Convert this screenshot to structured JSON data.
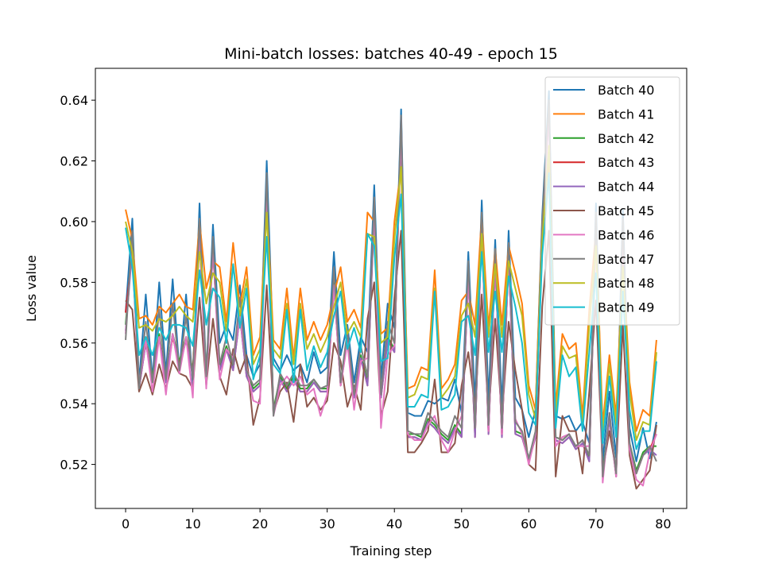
{
  "chart_data": {
    "type": "line",
    "title": "Mini-batch losses: batches 40-49 - epoch 15",
    "xlabel": "Training step",
    "ylabel": "Loss value",
    "xlim": [
      -4.5,
      83.5
    ],
    "ylim": [
      0.5055,
      0.6505
    ],
    "xticks": [
      0,
      10,
      20,
      30,
      40,
      50,
      60,
      70,
      80
    ],
    "yticks": [
      0.52,
      0.54,
      0.56,
      0.58,
      0.6,
      0.62,
      0.64
    ],
    "ytick_labels": [
      "0.52",
      "0.54",
      "0.56",
      "0.58",
      "0.60",
      "0.62",
      "0.64"
    ],
    "grid": false,
    "legend": "top-right",
    "x": [
      0,
      1,
      2,
      3,
      4,
      5,
      6,
      7,
      8,
      9,
      10,
      11,
      12,
      13,
      14,
      15,
      16,
      17,
      18,
      19,
      20,
      21,
      22,
      23,
      24,
      25,
      26,
      27,
      28,
      29,
      30,
      31,
      32,
      33,
      34,
      35,
      36,
      37,
      38,
      39,
      40,
      41,
      42,
      43,
      44,
      45,
      46,
      47,
      48,
      49,
      50,
      51,
      52,
      53,
      54,
      55,
      56,
      57,
      58,
      59,
      60,
      61,
      62,
      63,
      64,
      65,
      66,
      67,
      68,
      69,
      70,
      71,
      72,
      73,
      74,
      75,
      76,
      77,
      78,
      79
    ],
    "series": [
      {
        "name": "Batch 40",
        "color": "#1f77b4",
        "values": [
          0.57,
          0.601,
          0.547,
          0.576,
          0.548,
          0.58,
          0.55,
          0.581,
          0.551,
          0.576,
          0.546,
          0.606,
          0.549,
          0.599,
          0.56,
          0.566,
          0.561,
          0.579,
          0.556,
          0.549,
          0.553,
          0.62,
          0.555,
          0.551,
          0.556,
          0.551,
          0.553,
          0.547,
          0.557,
          0.55,
          0.552,
          0.59,
          0.556,
          0.566,
          0.547,
          0.562,
          0.557,
          0.612,
          0.548,
          0.573,
          0.565,
          0.637,
          0.537,
          0.536,
          0.536,
          0.541,
          0.54,
          0.542,
          0.541,
          0.548,
          0.537,
          0.59,
          0.54,
          0.607,
          0.541,
          0.594,
          0.539,
          0.597,
          0.542,
          0.538,
          0.529,
          0.538,
          0.602,
          0.643,
          0.536,
          0.535,
          0.536,
          0.531,
          0.534,
          0.527,
          0.606,
          0.521,
          0.544,
          0.522,
          0.604,
          0.532,
          0.521,
          0.532,
          0.522,
          0.534
        ]
      },
      {
        "name": "Batch 41",
        "color": "#ff7f0e",
        "values": [
          0.604,
          0.594,
          0.568,
          0.569,
          0.566,
          0.572,
          0.57,
          0.573,
          0.576,
          0.572,
          0.571,
          0.6,
          0.578,
          0.587,
          0.585,
          0.567,
          0.593,
          0.572,
          0.585,
          0.556,
          0.562,
          0.607,
          0.561,
          0.558,
          0.578,
          0.555,
          0.578,
          0.561,
          0.567,
          0.561,
          0.566,
          0.576,
          0.585,
          0.567,
          0.571,
          0.565,
          0.603,
          0.6,
          0.563,
          0.565,
          0.6,
          0.618,
          0.545,
          0.546,
          0.552,
          0.551,
          0.584,
          0.545,
          0.548,
          0.553,
          0.574,
          0.577,
          0.566,
          0.602,
          0.565,
          0.591,
          0.566,
          0.592,
          0.583,
          0.573,
          0.546,
          0.538,
          0.6,
          0.62,
          0.539,
          0.563,
          0.558,
          0.56,
          0.536,
          0.571,
          0.597,
          0.533,
          0.556,
          0.536,
          0.589,
          0.547,
          0.531,
          0.538,
          0.536,
          0.561
        ]
      },
      {
        "name": "Batch 42",
        "color": "#2ca02c",
        "values": [
          0.566,
          0.593,
          0.546,
          0.561,
          0.549,
          0.563,
          0.548,
          0.563,
          0.554,
          0.562,
          0.551,
          0.596,
          0.549,
          0.592,
          0.552,
          0.559,
          0.552,
          0.57,
          0.55,
          0.545,
          0.547,
          0.612,
          0.538,
          0.549,
          0.545,
          0.549,
          0.545,
          0.545,
          0.548,
          0.545,
          0.545,
          0.58,
          0.547,
          0.562,
          0.543,
          0.556,
          0.547,
          0.605,
          0.543,
          0.562,
          0.558,
          0.632,
          0.53,
          0.53,
          0.529,
          0.535,
          0.533,
          0.53,
          0.528,
          0.533,
          0.53,
          0.583,
          0.53,
          0.6,
          0.531,
          0.588,
          0.53,
          0.59,
          0.531,
          0.53,
          0.522,
          0.53,
          0.597,
          0.638,
          0.529,
          0.528,
          0.53,
          0.526,
          0.528,
          0.522,
          0.6,
          0.517,
          0.536,
          0.517,
          0.598,
          0.527,
          0.518,
          0.524,
          0.526,
          0.526
        ]
      },
      {
        "name": "Batch 43",
        "color": "#d62728",
        "values": [
          0.57,
          0.59,
          0.545,
          0.56,
          0.548,
          0.562,
          0.547,
          0.562,
          0.553,
          0.561,
          0.55,
          0.595,
          0.548,
          0.591,
          0.551,
          0.558,
          0.551,
          0.569,
          0.549,
          0.544,
          0.546,
          0.611,
          0.537,
          0.548,
          0.544,
          0.548,
          0.544,
          0.544,
          0.547,
          0.544,
          0.544,
          0.579,
          0.546,
          0.561,
          0.542,
          0.555,
          0.546,
          0.604,
          0.542,
          0.561,
          0.557,
          0.631,
          0.529,
          0.529,
          0.528,
          0.534,
          0.532,
          0.529,
          0.527,
          0.532,
          0.529,
          0.582,
          0.529,
          0.599,
          0.53,
          0.587,
          0.529,
          0.589,
          0.53,
          0.529,
          0.521,
          0.529,
          0.596,
          0.637,
          0.528,
          0.527,
          0.529,
          0.525,
          0.527,
          0.521,
          0.599,
          0.516,
          0.535,
          0.516,
          0.597,
          0.526,
          0.517,
          0.523,
          0.525,
          0.53
        ]
      },
      {
        "name": "Batch 44",
        "color": "#9467bd",
        "values": [
          0.564,
          0.591,
          0.545,
          0.56,
          0.547,
          0.562,
          0.547,
          0.563,
          0.552,
          0.561,
          0.549,
          0.595,
          0.548,
          0.591,
          0.551,
          0.558,
          0.551,
          0.569,
          0.549,
          0.544,
          0.546,
          0.611,
          0.537,
          0.548,
          0.544,
          0.548,
          0.544,
          0.544,
          0.547,
          0.544,
          0.544,
          0.579,
          0.546,
          0.561,
          0.542,
          0.555,
          0.546,
          0.604,
          0.542,
          0.561,
          0.557,
          0.634,
          0.529,
          0.529,
          0.528,
          0.534,
          0.532,
          0.529,
          0.527,
          0.532,
          0.529,
          0.582,
          0.529,
          0.599,
          0.53,
          0.587,
          0.529,
          0.589,
          0.53,
          0.529,
          0.521,
          0.529,
          0.596,
          0.637,
          0.528,
          0.527,
          0.529,
          0.525,
          0.527,
          0.521,
          0.599,
          0.516,
          0.535,
          0.516,
          0.597,
          0.526,
          0.517,
          0.523,
          0.525,
          0.523
        ]
      },
      {
        "name": "Batch 45",
        "color": "#8c564b",
        "values": [
          0.574,
          0.571,
          0.544,
          0.55,
          0.543,
          0.553,
          0.545,
          0.554,
          0.55,
          0.549,
          0.545,
          0.575,
          0.546,
          0.568,
          0.549,
          0.543,
          0.558,
          0.55,
          0.556,
          0.533,
          0.542,
          0.579,
          0.537,
          0.544,
          0.547,
          0.534,
          0.553,
          0.539,
          0.542,
          0.538,
          0.541,
          0.56,
          0.554,
          0.539,
          0.546,
          0.538,
          0.568,
          0.58,
          0.536,
          0.544,
          0.575,
          0.597,
          0.524,
          0.524,
          0.527,
          0.531,
          0.548,
          0.524,
          0.524,
          0.527,
          0.546,
          0.557,
          0.539,
          0.576,
          0.536,
          0.568,
          0.535,
          0.567,
          0.551,
          0.538,
          0.52,
          0.518,
          0.572,
          0.597,
          0.516,
          0.536,
          0.531,
          0.531,
          0.517,
          0.544,
          0.574,
          0.518,
          0.531,
          0.518,
          0.566,
          0.523,
          0.512,
          0.515,
          0.518,
          0.533
        ]
      },
      {
        "name": "Batch 46",
        "color": "#e377c2",
        "values": [
          0.563,
          0.594,
          0.546,
          0.561,
          0.544,
          0.562,
          0.543,
          0.563,
          0.55,
          0.562,
          0.542,
          0.596,
          0.545,
          0.592,
          0.548,
          0.558,
          0.555,
          0.569,
          0.552,
          0.541,
          0.54,
          0.61,
          0.536,
          0.546,
          0.549,
          0.546,
          0.549,
          0.543,
          0.545,
          0.536,
          0.543,
          0.579,
          0.546,
          0.56,
          0.538,
          0.554,
          0.555,
          0.603,
          0.532,
          0.556,
          0.559,
          0.63,
          0.53,
          0.528,
          0.528,
          0.533,
          0.536,
          0.528,
          0.524,
          0.531,
          0.536,
          0.581,
          0.532,
          0.598,
          0.531,
          0.586,
          0.53,
          0.588,
          0.535,
          0.53,
          0.52,
          0.53,
          0.595,
          0.636,
          0.526,
          0.529,
          0.53,
          0.526,
          0.526,
          0.526,
          0.598,
          0.514,
          0.537,
          0.516,
          0.596,
          0.525,
          0.515,
          0.513,
          0.524,
          0.53
        ]
      },
      {
        "name": "Batch 47",
        "color": "#7f7f7f",
        "values": [
          0.561,
          0.597,
          0.545,
          0.567,
          0.547,
          0.571,
          0.548,
          0.573,
          0.551,
          0.569,
          0.548,
          0.601,
          0.549,
          0.595,
          0.553,
          0.562,
          0.553,
          0.575,
          0.551,
          0.546,
          0.548,
          0.616,
          0.536,
          0.55,
          0.546,
          0.55,
          0.546,
          0.546,
          0.548,
          0.545,
          0.546,
          0.585,
          0.547,
          0.564,
          0.543,
          0.559,
          0.549,
          0.608,
          0.543,
          0.567,
          0.56,
          0.635,
          0.531,
          0.53,
          0.53,
          0.537,
          0.534,
          0.531,
          0.529,
          0.536,
          0.532,
          0.587,
          0.532,
          0.603,
          0.533,
          0.591,
          0.532,
          0.593,
          0.534,
          0.531,
          0.522,
          0.531,
          0.6,
          0.64,
          0.529,
          0.528,
          0.53,
          0.526,
          0.528,
          0.523,
          0.603,
          0.516,
          0.537,
          0.517,
          0.601,
          0.527,
          0.517,
          0.523,
          0.526,
          0.521
        ]
      },
      {
        "name": "Batch 48",
        "color": "#bcbd22",
        "values": [
          0.6,
          0.59,
          0.565,
          0.566,
          0.564,
          0.568,
          0.567,
          0.569,
          0.572,
          0.569,
          0.567,
          0.59,
          0.573,
          0.583,
          0.58,
          0.564,
          0.586,
          0.569,
          0.581,
          0.553,
          0.558,
          0.603,
          0.558,
          0.555,
          0.573,
          0.553,
          0.573,
          0.558,
          0.563,
          0.557,
          0.562,
          0.572,
          0.58,
          0.563,
          0.567,
          0.562,
          0.596,
          0.595,
          0.56,
          0.562,
          0.594,
          0.618,
          0.542,
          0.543,
          0.549,
          0.548,
          0.578,
          0.542,
          0.545,
          0.549,
          0.569,
          0.573,
          0.562,
          0.596,
          0.562,
          0.586,
          0.562,
          0.587,
          0.578,
          0.569,
          0.543,
          0.535,
          0.594,
          0.625,
          0.536,
          0.559,
          0.555,
          0.556,
          0.533,
          0.566,
          0.592,
          0.53,
          0.553,
          0.533,
          0.585,
          0.544,
          0.528,
          0.534,
          0.533,
          0.557
        ]
      },
      {
        "name": "Batch 49",
        "color": "#17becf",
        "values": [
          0.598,
          0.585,
          0.556,
          0.562,
          0.556,
          0.565,
          0.561,
          0.566,
          0.566,
          0.565,
          0.559,
          0.584,
          0.566,
          0.578,
          0.575,
          0.56,
          0.586,
          0.565,
          0.578,
          0.548,
          0.556,
          0.595,
          0.553,
          0.55,
          0.571,
          0.547,
          0.571,
          0.551,
          0.559,
          0.552,
          0.557,
          0.569,
          0.577,
          0.558,
          0.565,
          0.557,
          0.596,
          0.592,
          0.554,
          0.555,
          0.588,
          0.609,
          0.539,
          0.539,
          0.543,
          0.542,
          0.577,
          0.538,
          0.539,
          0.543,
          0.567,
          0.569,
          0.556,
          0.59,
          0.557,
          0.577,
          0.557,
          0.582,
          0.572,
          0.56,
          0.537,
          0.533,
          0.589,
          0.616,
          0.532,
          0.556,
          0.549,
          0.552,
          0.531,
          0.557,
          0.583,
          0.527,
          0.549,
          0.529,
          0.577,
          0.538,
          0.525,
          0.531,
          0.531,
          0.554
        ]
      }
    ]
  }
}
